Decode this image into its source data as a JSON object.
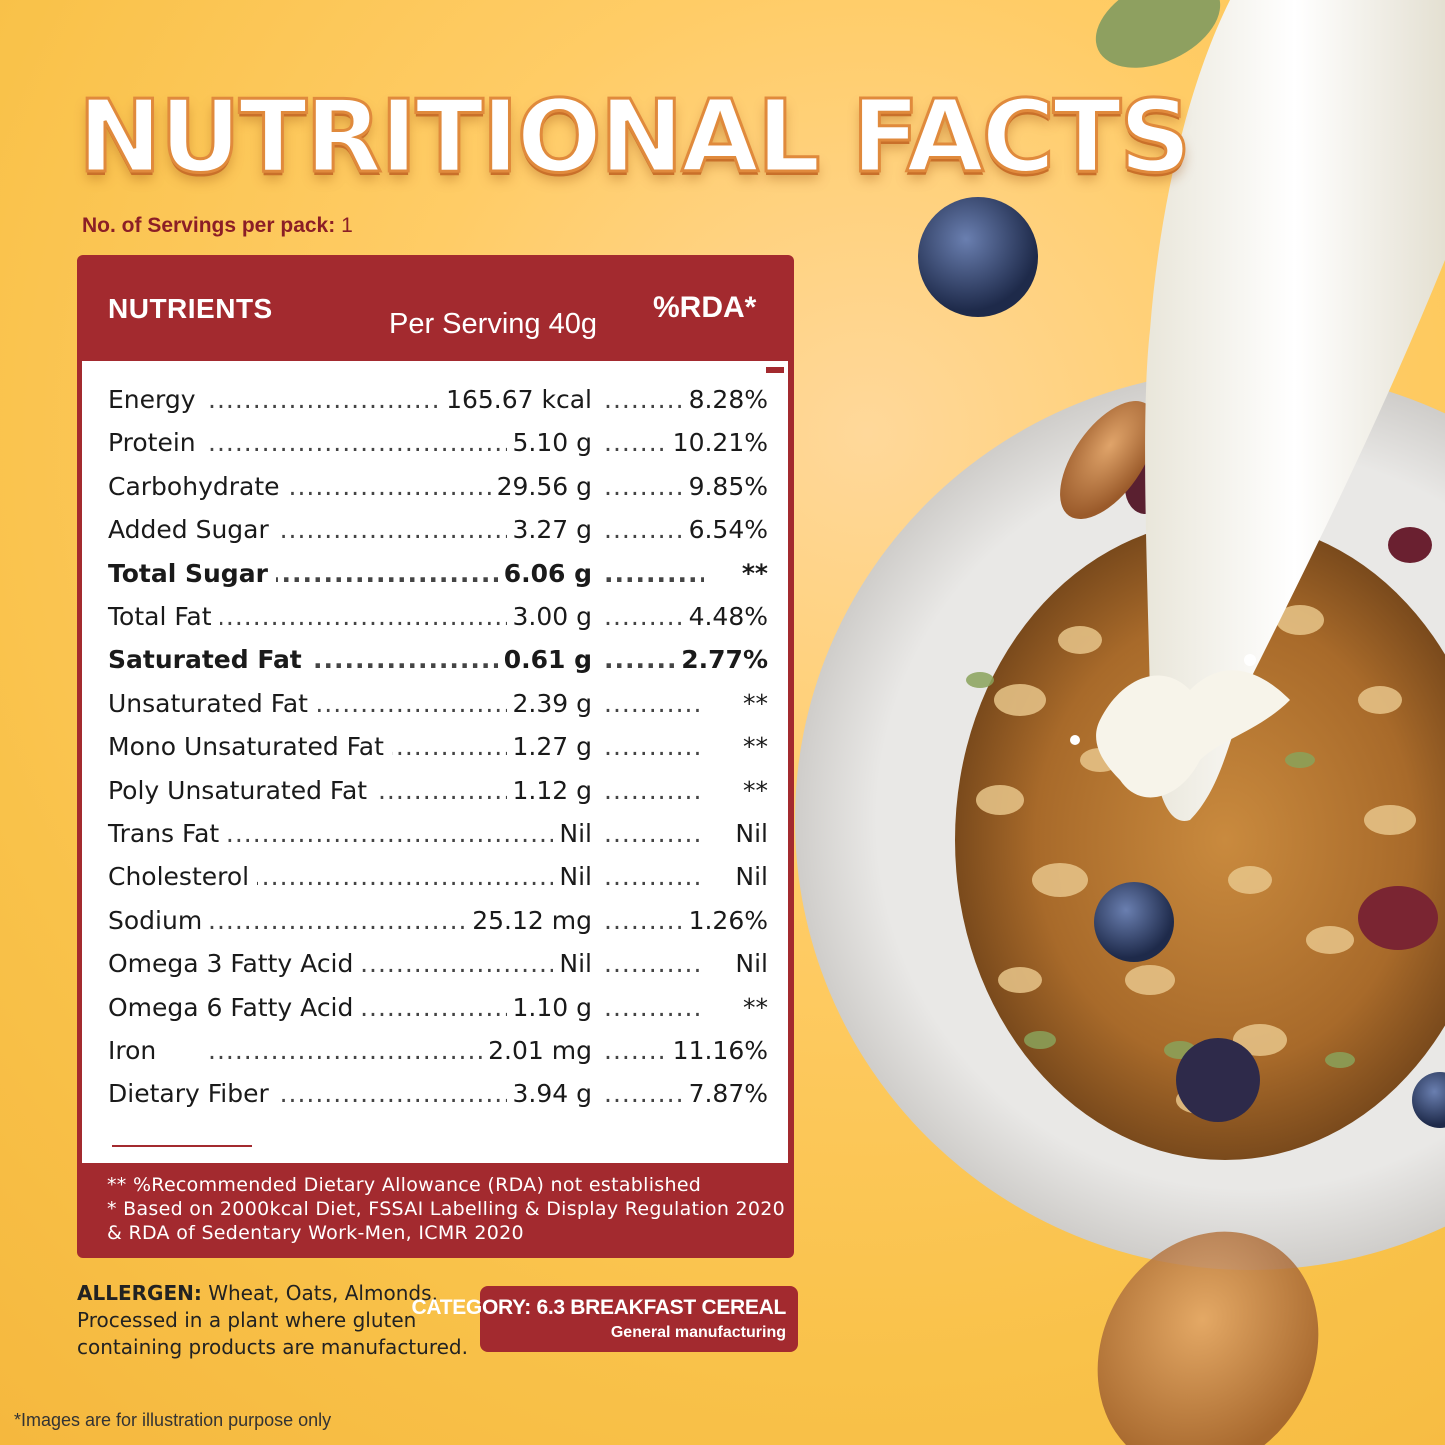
{
  "title": "NUTRITIONAL FACTS",
  "servings": {
    "label": "No. of Servings per pack:",
    "value": "1"
  },
  "table": {
    "headers": {
      "nutrients": "NUTRIENTS",
      "per_serving": "Per Serving 40g",
      "rda": "%RDA*"
    },
    "rows": [
      {
        "name": "Energy",
        "value": "165.67 kcal",
        "rda": "8.28%",
        "bold": false
      },
      {
        "name": "Protein",
        "value": "5.10 g",
        "rda": "10.21%",
        "bold": false
      },
      {
        "name": "Carbohydrate",
        "value": "29.56 g",
        "rda": "9.85%",
        "bold": false
      },
      {
        "name": "Added Sugar",
        "value": "3.27 g",
        "rda": "6.54%",
        "bold": false
      },
      {
        "name": "Total Sugar",
        "value": "6.06 g",
        "rda": "**",
        "bold": true
      },
      {
        "name": "Total Fat",
        "value": "3.00 g",
        "rda": "4.48%",
        "bold": false
      },
      {
        "name": "Saturated Fat",
        "value": "0.61 g",
        "rda": "2.77%",
        "bold": true
      },
      {
        "name": "Unsaturated Fat",
        "value": "2.39 g",
        "rda": "**",
        "bold": false
      },
      {
        "name": "Mono Unsaturated Fat",
        "value": "1.27 g",
        "rda": "**",
        "bold": false
      },
      {
        "name": "Poly Unsaturated Fat",
        "value": "1.12 g",
        "rda": "**",
        "bold": false
      },
      {
        "name": "Trans Fat",
        "value": "Nil",
        "rda": "Nil",
        "bold": false
      },
      {
        "name": "Cholesterol",
        "value": "Nil",
        "rda": "Nil",
        "bold": false
      },
      {
        "name": "Sodium",
        "value": "25.12 mg",
        "rda": "1.26%",
        "bold": false
      },
      {
        "name": "Omega 3 Fatty Acid",
        "value": "Nil",
        "rda": "Nil",
        "bold": false
      },
      {
        "name": "Omega 6 Fatty Acid",
        "value": "1.10 g",
        "rda": "**",
        "bold": false
      },
      {
        "name": "Iron",
        "value": "2.01 mg",
        "rda": "11.16%",
        "bold": false
      },
      {
        "name": "Dietary Fiber",
        "value": "3.94 g",
        "rda": "7.87%",
        "bold": false
      }
    ],
    "footnotes": [
      "** %Recommended Dietary Allowance (RDA) not established",
      "* Based on 2000kcal Diet, FSSAI Labelling & Display Regulation 2020",
      "& RDA of Sedentary Work-Men, ICMR 2020"
    ]
  },
  "allergen": {
    "label": "ALLERGEN:",
    "text": "Wheat, Oats, Almonds, Processed in a plant where gluten containing products are manufactured."
  },
  "category": {
    "line1": "CATEGORY: 6.3 BREAKFAST CEREAL",
    "line2": "General manufacturing"
  },
  "disclaimer": "*Images are for illustration purpose only",
  "colors": {
    "brand_red": "#a32a2f",
    "background": "#f9c24a",
    "title_outline": "#e08a3c"
  },
  "icons": [
    "bowl-of-granola-illustration",
    "milk-pour-illustration",
    "blueberry-icon",
    "almond-icon",
    "pumpkin-seed-icon"
  ]
}
